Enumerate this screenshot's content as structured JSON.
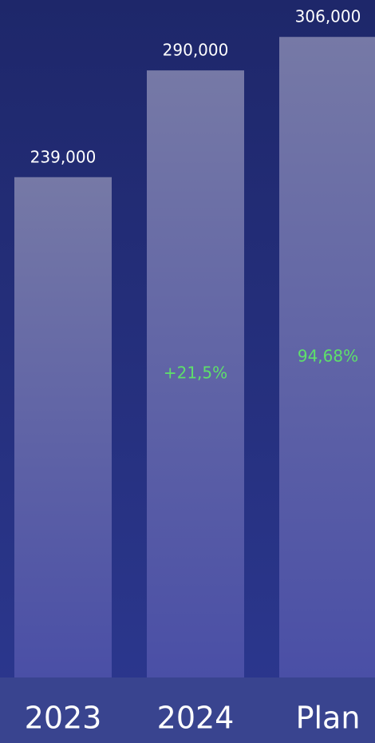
{
  "chart_data": {
    "type": "bar",
    "categories": [
      "2023",
      "2024",
      "Plan"
    ],
    "values": [
      239000,
      290000,
      306000
    ],
    "value_labels": [
      "239,000",
      "290,000",
      "306,000"
    ],
    "ylim": [
      0,
      316000
    ],
    "color": "#6c70a8",
    "annotations": [
      {
        "category": "2024",
        "text": "+21,5%",
        "color": "#5ee06a"
      },
      {
        "category": "Plan",
        "text": "94,68%",
        "color": "#5ee06a"
      }
    ]
  }
}
